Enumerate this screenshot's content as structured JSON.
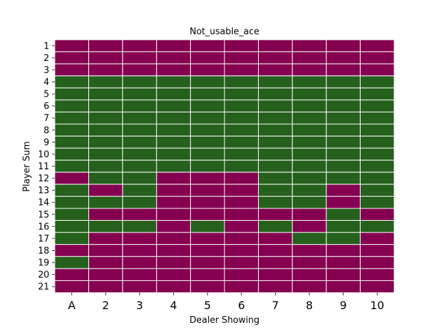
{
  "chart_data": {
    "type": "heatmap",
    "title": "Not_usable_ace",
    "xlabel": "Dealer Showing",
    "ylabel": "Player Sum",
    "x_categories": [
      "A",
      "2",
      "3",
      "4",
      "5",
      "6",
      "7",
      "8",
      "9",
      "10"
    ],
    "y_categories": [
      "1",
      "2",
      "3",
      "4",
      "5",
      "6",
      "7",
      "8",
      "9",
      "10",
      "11",
      "12",
      "13",
      "14",
      "15",
      "16",
      "17",
      "18",
      "19",
      "20",
      "21"
    ],
    "value_legend": {
      "0": "#850050",
      "1": "#25601c"
    },
    "cell_border_color": "#ffffff",
    "grid": false,
    "values": [
      [
        0,
        0,
        0,
        0,
        0,
        0,
        0,
        0,
        0,
        0
      ],
      [
        0,
        0,
        0,
        0,
        0,
        0,
        0,
        0,
        0,
        0
      ],
      [
        0,
        0,
        0,
        0,
        0,
        0,
        0,
        0,
        0,
        0
      ],
      [
        1,
        1,
        1,
        1,
        1,
        1,
        1,
        1,
        1,
        1
      ],
      [
        1,
        1,
        1,
        1,
        1,
        1,
        1,
        1,
        1,
        1
      ],
      [
        1,
        1,
        1,
        1,
        1,
        1,
        1,
        1,
        1,
        1
      ],
      [
        1,
        1,
        1,
        1,
        1,
        1,
        1,
        1,
        1,
        1
      ],
      [
        1,
        1,
        1,
        1,
        1,
        1,
        1,
        1,
        1,
        1
      ],
      [
        1,
        1,
        1,
        1,
        1,
        1,
        1,
        1,
        1,
        1
      ],
      [
        1,
        1,
        1,
        1,
        1,
        1,
        1,
        1,
        1,
        1
      ],
      [
        1,
        1,
        1,
        1,
        1,
        1,
        1,
        1,
        1,
        1
      ],
      [
        0,
        1,
        1,
        0,
        0,
        0,
        1,
        1,
        1,
        1
      ],
      [
        1,
        0,
        1,
        0,
        0,
        0,
        1,
        1,
        0,
        1
      ],
      [
        1,
        1,
        1,
        0,
        0,
        0,
        1,
        1,
        0,
        1
      ],
      [
        1,
        0,
        0,
        0,
        0,
        0,
        0,
        0,
        1,
        0
      ],
      [
        1,
        1,
        1,
        0,
        1,
        0,
        1,
        0,
        1,
        1
      ],
      [
        1,
        0,
        0,
        0,
        0,
        0,
        0,
        1,
        1,
        0
      ],
      [
        0,
        0,
        0,
        0,
        0,
        0,
        0,
        0,
        0,
        0
      ],
      [
        1,
        0,
        0,
        0,
        0,
        0,
        0,
        0,
        0,
        0
      ],
      [
        0,
        0,
        0,
        0,
        0,
        0,
        0,
        0,
        0,
        0
      ],
      [
        0,
        0,
        0,
        0,
        0,
        0,
        0,
        0,
        0,
        0
      ]
    ]
  }
}
